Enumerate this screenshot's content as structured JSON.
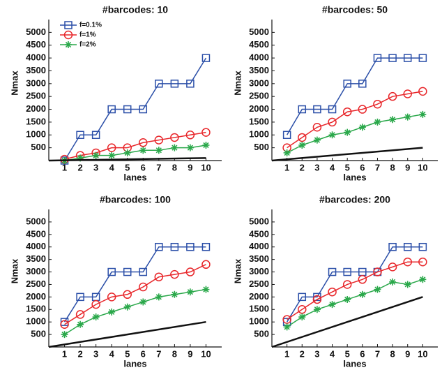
{
  "chart_data": [
    {
      "type": "line",
      "title": "#barcodes: 10",
      "xlabel": "lanes",
      "ylabel": "Nmax",
      "x": [
        1,
        2,
        3,
        4,
        5,
        6,
        7,
        8,
        9,
        10
      ],
      "xlim": [
        0,
        11
      ],
      "xticks": [
        1,
        2,
        3,
        4,
        5,
        6,
        7,
        8,
        9,
        10
      ],
      "ylim": [
        0,
        5500
      ],
      "yticks": [
        500,
        1000,
        1500,
        2000,
        2500,
        3000,
        3500,
        4000,
        4500,
        5000
      ],
      "legend": "upper left",
      "series": [
        {
          "name": "f=0.1%",
          "color": "#2b4fa8",
          "marker": "square",
          "values": [
            0,
            1000,
            1000,
            2000,
            2000,
            2000,
            3000,
            3000,
            3000,
            4000
          ]
        },
        {
          "name": "f=1%",
          "color": "#e8262a",
          "marker": "circle",
          "values": [
            50,
            200,
            300,
            500,
            500,
            700,
            800,
            900,
            1000,
            1100
          ]
        },
        {
          "name": "f=2%",
          "color": "#2aa84a",
          "marker": "star",
          "values": [
            0,
            100,
            200,
            200,
            300,
            400,
            400,
            500,
            500,
            600
          ]
        },
        {
          "color": "#111111",
          "x": [
            0,
            10
          ],
          "values": [
            0,
            100
          ]
        }
      ]
    },
    {
      "type": "line",
      "title": "#barcodes: 50",
      "xlabel": "lanes",
      "ylabel": "Nmax",
      "x": [
        1,
        2,
        3,
        4,
        5,
        6,
        7,
        8,
        9,
        10
      ],
      "xlim": [
        0,
        11
      ],
      "xticks": [
        1,
        2,
        3,
        4,
        5,
        6,
        7,
        8,
        9,
        10
      ],
      "ylim": [
        0,
        5500
      ],
      "yticks": [
        500,
        1000,
        1500,
        2000,
        2500,
        3000,
        3500,
        4000,
        4500,
        5000
      ],
      "series": [
        {
          "color": "#2b4fa8",
          "marker": "square",
          "values": [
            1000,
            2000,
            2000,
            2000,
            3000,
            3000,
            4000,
            4000,
            4000,
            4000
          ]
        },
        {
          "color": "#e8262a",
          "marker": "circle",
          "values": [
            500,
            900,
            1300,
            1500,
            1900,
            2000,
            2200,
            2500,
            2600,
            2700
          ]
        },
        {
          "color": "#2aa84a",
          "marker": "star",
          "values": [
            300,
            600,
            800,
            1000,
            1100,
            1300,
            1500,
            1600,
            1700,
            1800
          ]
        },
        {
          "color": "#111111",
          "x": [
            0,
            10
          ],
          "values": [
            0,
            500
          ]
        }
      ]
    },
    {
      "type": "line",
      "title": "#barcodes: 100",
      "xlabel": "lanes",
      "ylabel": "Nmax",
      "x": [
        1,
        2,
        3,
        4,
        5,
        6,
        7,
        8,
        9,
        10
      ],
      "xlim": [
        0,
        11
      ],
      "xticks": [
        1,
        2,
        3,
        4,
        5,
        6,
        7,
        8,
        9,
        10
      ],
      "ylim": [
        0,
        5500
      ],
      "yticks": [
        500,
        1000,
        1500,
        2000,
        2500,
        3000,
        3500,
        4000,
        4500,
        5000
      ],
      "series": [
        {
          "color": "#2b4fa8",
          "marker": "square",
          "values": [
            1000,
            2000,
            2000,
            3000,
            3000,
            3000,
            4000,
            4000,
            4000,
            4000
          ]
        },
        {
          "color": "#e8262a",
          "marker": "circle",
          "values": [
            900,
            1300,
            1700,
            2000,
            2100,
            2400,
            2800,
            2900,
            3000,
            3300
          ]
        },
        {
          "color": "#2aa84a",
          "marker": "star",
          "values": [
            500,
            900,
            1200,
            1400,
            1600,
            1800,
            2000,
            2100,
            2200,
            2300
          ]
        },
        {
          "color": "#111111",
          "x": [
            0,
            10
          ],
          "values": [
            0,
            1000
          ]
        }
      ]
    },
    {
      "type": "line",
      "title": "#barcodes: 200",
      "xlabel": "lanes",
      "ylabel": "Nmax",
      "x": [
        1,
        2,
        3,
        4,
        5,
        6,
        7,
        8,
        9,
        10
      ],
      "xlim": [
        0,
        11
      ],
      "xticks": [
        1,
        2,
        3,
        4,
        5,
        6,
        7,
        8,
        9,
        10
      ],
      "ylim": [
        0,
        5500
      ],
      "yticks": [
        500,
        1000,
        1500,
        2000,
        2500,
        3000,
        3500,
        4000,
        4500,
        5000
      ],
      "series": [
        {
          "color": "#2b4fa8",
          "marker": "square",
          "values": [
            1000,
            2000,
            2000,
            3000,
            3000,
            3000,
            3000,
            4000,
            4000,
            4000
          ]
        },
        {
          "color": "#e8262a",
          "marker": "circle",
          "values": [
            1100,
            1500,
            1900,
            2200,
            2500,
            2700,
            3000,
            3200,
            3400,
            3400
          ]
        },
        {
          "color": "#2aa84a",
          "marker": "star",
          "values": [
            800,
            1200,
            1500,
            1700,
            1900,
            2100,
            2300,
            2600,
            2500,
            2700
          ]
        },
        {
          "color": "#111111",
          "x": [
            0,
            10
          ],
          "values": [
            0,
            2000
          ]
        }
      ]
    }
  ]
}
